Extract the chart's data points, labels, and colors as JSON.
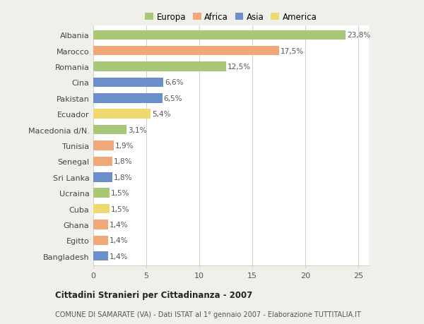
{
  "categories": [
    "Bangladesh",
    "Egitto",
    "Ghana",
    "Cuba",
    "Ucraina",
    "Sri Lanka",
    "Senegal",
    "Tunisia",
    "Macedonia d/N.",
    "Ecuador",
    "Pakistan",
    "Cina",
    "Romania",
    "Marocco",
    "Albania"
  ],
  "values": [
    1.4,
    1.4,
    1.4,
    1.5,
    1.5,
    1.8,
    1.8,
    1.9,
    3.1,
    5.4,
    6.5,
    6.6,
    12.5,
    17.5,
    23.8
  ],
  "labels": [
    "1,4%",
    "1,4%",
    "1,4%",
    "1,5%",
    "1,5%",
    "1,8%",
    "1,8%",
    "1,9%",
    "3,1%",
    "5,4%",
    "6,5%",
    "6,6%",
    "12,5%",
    "17,5%",
    "23,8%"
  ],
  "colors": [
    "#6a8fcb",
    "#f0a878",
    "#f0a878",
    "#f0d870",
    "#a8c878",
    "#6a8fcb",
    "#f0a878",
    "#f0a878",
    "#a8c878",
    "#f0d870",
    "#6a8fcb",
    "#6a8fcb",
    "#a8c878",
    "#f0a878",
    "#a8c878"
  ],
  "legend_labels": [
    "Europa",
    "Africa",
    "Asia",
    "America"
  ],
  "legend_colors": [
    "#a8c878",
    "#f0a878",
    "#6a8fcb",
    "#f0d870"
  ],
  "title": "Cittadini Stranieri per Cittadinanza - 2007",
  "subtitle": "COMUNE DI SAMARATE (VA) - Dati ISTAT al 1° gennaio 2007 - Elaborazione TUTTITALIA.IT",
  "xlim": [
    0,
    26
  ],
  "xticks": [
    0,
    5,
    10,
    15,
    20,
    25
  ],
  "background_color": "#f0f0eb",
  "bar_background": "#ffffff",
  "grid_color": "#d0d0d0"
}
